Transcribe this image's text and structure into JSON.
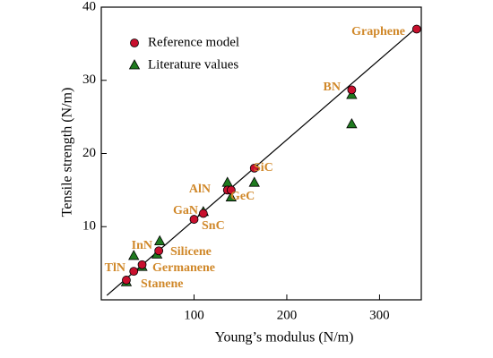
{
  "chart_data": {
    "type": "scatter",
    "x_label": "Young’s modulus (N/m)",
    "y_label": "Tensile strength (N/m)",
    "xlim": [
      0,
      345
    ],
    "ylim": [
      0,
      40
    ],
    "xticks": [
      100,
      200,
      300
    ],
    "yticks": [
      10,
      20,
      30,
      40
    ],
    "legend_position": "upper left",
    "series": [
      {
        "name": "Reference model",
        "color": "#c8102e",
        "marker": "circle",
        "x": [
          27,
          35,
          44,
          62,
          100,
          110,
          136,
          140,
          165,
          270,
          340
        ],
        "values": [
          2.7,
          3.9,
          4.8,
          6.7,
          11,
          11.8,
          15,
          15,
          18,
          28.7,
          37
        ]
      },
      {
        "name": "Literature values",
        "color": "#1f7a1f",
        "marker": "triangle",
        "x": [
          27,
          35,
          44,
          60,
          63,
          110,
          136,
          140,
          165,
          270,
          270
        ],
        "values": [
          2.4,
          6,
          4.5,
          6.2,
          8,
          12,
          16,
          14,
          16,
          28,
          24
        ]
      }
    ],
    "trend_line": {
      "x": [
        6,
        338
      ],
      "values": [
        0.6,
        37
      ]
    },
    "annotation_color": "#d0882a",
    "annotations": [
      "Graphene",
      "BN",
      "SiC",
      "AlN",
      "GeC",
      "GaN",
      "SnC",
      "InN",
      "Silicene",
      "TlN",
      "Germanene",
      "Stanene"
    ]
  }
}
